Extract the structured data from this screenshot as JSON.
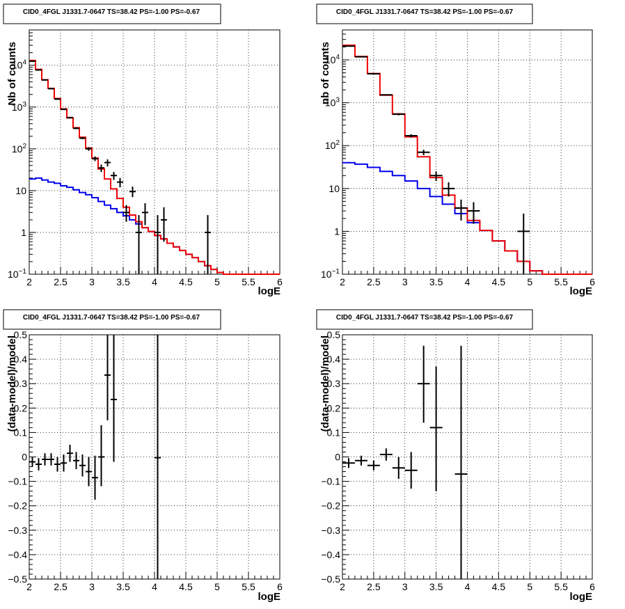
{
  "chart_data": [
    {
      "panel": "top-left",
      "type": "line",
      "title": "CID0_4FGL J1331.7-0647 TS=38.42 PS=-1.00 PS=-0.67",
      "xlabel": "logE",
      "ylabel": "Nb of counts",
      "xlim": [
        2,
        6
      ],
      "ylim": [
        0.1,
        70000
      ],
      "yscale": "log",
      "grid": true,
      "xticks": [
        "2",
        "2.5",
        "3",
        "3.5",
        "4",
        "4.5",
        "5",
        "5.5",
        "6"
      ],
      "yticks": [
        {
          "v": 0.1,
          "base": "10",
          "exp": "−1"
        },
        {
          "v": 1,
          "label": "1"
        },
        {
          "v": 10,
          "label": "10"
        },
        {
          "v": 100,
          "base": "10",
          "exp": "2"
        },
        {
          "v": 1000,
          "base": "10",
          "exp": "3"
        },
        {
          "v": 10000,
          "base": "10",
          "exp": "4"
        }
      ],
      "edges": [
        2.0,
        2.1,
        2.2,
        2.3,
        2.4,
        2.5,
        2.6,
        2.7,
        2.8,
        2.9,
        3.0,
        3.1,
        3.2,
        3.3,
        3.4,
        3.5,
        3.6,
        3.7,
        3.8,
        3.9,
        4.0,
        4.1,
        4.2,
        4.3,
        4.4,
        4.5,
        4.6,
        4.7,
        4.8,
        4.9,
        5.0,
        5.1,
        5.2,
        5.3,
        5.4,
        5.5,
        5.6,
        5.7,
        5.8,
        5.9,
        6.0
      ],
      "series": [
        {
          "name": "",
          "color": "#0000ee",
          "kind": "hist",
          "values": [
            19,
            20,
            18,
            16,
            15,
            13,
            12,
            10.5,
            9,
            8,
            6.8,
            5.5,
            4.5,
            3.7,
            3.0,
            2.5,
            2.0,
            1.6,
            1.3,
            1.05,
            0.85,
            0.7,
            0.55,
            0.45,
            0.37,
            0.3,
            0.25,
            0.2,
            0.16,
            0.13,
            0.11,
            0.1,
            0.1,
            0.1,
            0.1,
            0.1,
            0.1,
            0.1,
            0.1,
            0.1
          ]
        },
        {
          "name": "",
          "color": "#ee0000",
          "kind": "hist",
          "values": [
            13000,
            8000,
            4500,
            2800,
            1600,
            900,
            550,
            320,
            190,
            105,
            60,
            33,
            19,
            11,
            6.5,
            4.0,
            2.6,
            1.8,
            1.3,
            1.05,
            0.85,
            0.7,
            0.55,
            0.45,
            0.37,
            0.3,
            0.25,
            0.2,
            0.16,
            0.13,
            0.11,
            0.1,
            0.1,
            0.1,
            0.1,
            0.1,
            0.1,
            0.1,
            0.1,
            0.1
          ]
        },
        {
          "name": "",
          "color": "#000000",
          "kind": "points",
          "x": [
            2.05,
            2.15,
            2.25,
            2.35,
            2.45,
            2.55,
            2.65,
            2.75,
            2.85,
            2.95,
            3.05,
            3.15,
            3.25,
            3.35,
            3.45,
            3.55,
            3.65,
            3.75,
            3.85,
            4.05,
            4.15,
            4.85
          ],
          "y": [
            12500,
            7700,
            4450,
            2750,
            1550,
            880,
            560,
            310,
            180,
            100,
            58,
            35,
            47,
            23,
            16,
            3,
            9.5,
            1,
            3,
            1,
            2,
            1
          ],
          "ylo": [
            12300,
            7500,
            4300,
            2650,
            1490,
            850,
            535,
            295,
            170,
            90,
            51,
            28,
            38,
            18,
            12,
            1.8,
            7,
            0.1,
            1.5,
            0.1,
            0.6,
            0.1
          ],
          "yhi": [
            12700,
            7900,
            4600,
            2850,
            1610,
            910,
            585,
            325,
            190,
            110,
            66,
            42,
            56,
            28,
            20,
            4.5,
            12.5,
            2.6,
            5,
            2.6,
            4,
            2.6
          ]
        }
      ]
    },
    {
      "panel": "top-right",
      "type": "line",
      "title": "CID0_4FGL J1331.7-0647 TS=38.42 PS=-1.00 PS=-0.67",
      "xlabel": "logE",
      "ylabel": "nb of counts",
      "xlim": [
        2,
        6
      ],
      "ylim": [
        0.1,
        50000
      ],
      "yscale": "log",
      "grid": true,
      "xticks": [
        "2",
        "2.5",
        "3",
        "3.5",
        "4",
        "4.5",
        "5",
        "5.5",
        "6"
      ],
      "yticks": [
        {
          "v": 0.1,
          "base": "10",
          "exp": "−1"
        },
        {
          "v": 1,
          "label": "1"
        },
        {
          "v": 10,
          "label": "10"
        },
        {
          "v": 100,
          "base": "10",
          "exp": "2"
        },
        {
          "v": 1000,
          "base": "10",
          "exp": "3"
        },
        {
          "v": 10000,
          "base": "10",
          "exp": "4"
        }
      ],
      "edges": [
        2.0,
        2.2,
        2.4,
        2.6,
        2.8,
        3.0,
        3.2,
        3.4,
        3.6,
        3.8,
        4.0,
        4.2,
        4.4,
        4.6,
        4.8,
        5.0,
        5.2,
        5.4,
        5.6,
        5.8,
        6.0
      ],
      "series": [
        {
          "name": "",
          "color": "#0000ee",
          "kind": "hist",
          "values": [
            40,
            37,
            31,
            25,
            20,
            15,
            10,
            6.5,
            4.3,
            2.6,
            1.6,
            1.05,
            0.6,
            0.35,
            0.2,
            0.12,
            0.1,
            0.1,
            0.1,
            0.1
          ]
        },
        {
          "name": "",
          "color": "#ee0000",
          "kind": "hist",
          "values": [
            22000,
            12000,
            4800,
            1500,
            550,
            160,
            55,
            18,
            7,
            3.5,
            1.8,
            1.05,
            0.6,
            0.35,
            0.2,
            0.12,
            0.1,
            0.1,
            0.1,
            0.1
          ]
        },
        {
          "name": "",
          "color": "#000000",
          "kind": "points",
          "x": [
            2.1,
            2.3,
            2.5,
            2.7,
            2.9,
            3.1,
            3.3,
            3.5,
            3.7,
            3.9,
            4.1,
            4.9
          ],
          "y": [
            21000,
            11800,
            4750,
            1530,
            540,
            170,
            70,
            20,
            10,
            3.5,
            3,
            1
          ],
          "ylo": [
            20800,
            11600,
            4650,
            1480,
            510,
            155,
            60,
            15,
            6.5,
            1.8,
            1.5,
            0.1
          ],
          "yhi": [
            21200,
            12000,
            4850,
            1580,
            570,
            185,
            80,
            25,
            14,
            5.5,
            4.8,
            2.6
          ]
        }
      ]
    },
    {
      "panel": "bottom-left",
      "type": "scatter",
      "title": "CID0_4FGL J1331.7-0647 TS=38.42 PS=-1.00 PS=-0.67",
      "xlabel": "logE",
      "ylabel": "(data-model)/model",
      "xlim": [
        2,
        6
      ],
      "ylim": [
        -0.5,
        0.5
      ],
      "grid": true,
      "xticks": [
        "2",
        "2.5",
        "3",
        "3.5",
        "4",
        "4.5",
        "5",
        "5.5",
        "6"
      ],
      "yticks": [
        "−0.5",
        "−0.4",
        "−0.3",
        "−0.2",
        "−0.1",
        "0",
        "0.1",
        "0.2",
        "0.3",
        "0.4",
        "0.5"
      ],
      "series": [
        {
          "name": "",
          "color": "#000000",
          "kind": "points",
          "xerr": 0.05,
          "x": [
            2.05,
            2.15,
            2.25,
            2.35,
            2.45,
            2.55,
            2.65,
            2.75,
            2.85,
            2.95,
            3.05,
            3.15,
            3.25,
            3.35,
            4.05
          ],
          "y": [
            -0.02,
            -0.03,
            -0.01,
            -0.01,
            -0.03,
            -0.025,
            0.015,
            -0.015,
            -0.035,
            -0.06,
            -0.085,
            0.0,
            0.335,
            0.235,
            -0.003
          ],
          "ylo": [
            -0.04,
            -0.055,
            -0.035,
            -0.035,
            -0.06,
            -0.06,
            -0.02,
            -0.05,
            -0.08,
            -0.12,
            -0.175,
            -0.12,
            0.15,
            -0.02,
            -0.5
          ],
          "yhi": [
            0.0,
            -0.005,
            0.015,
            0.015,
            0.0,
            0.01,
            0.05,
            0.02,
            0.01,
            0.0,
            0.005,
            0.13,
            0.5,
            0.5,
            0.5
          ]
        }
      ]
    },
    {
      "panel": "bottom-right",
      "type": "scatter",
      "title": "CID0_4FGL J1331.7-0647 TS=38.42 PS=-1.00 PS=-0.67",
      "xlabel": "logE",
      "ylabel": "(data-model)/model",
      "xlim": [
        2,
        6
      ],
      "ylim": [
        -0.5,
        0.5
      ],
      "grid": true,
      "xticks": [
        "2",
        "2.5",
        "3",
        "3.5",
        "4",
        "4.5",
        "5",
        "5.5",
        "6"
      ],
      "yticks": [
        "−0.5",
        "−0.4",
        "−0.3",
        "−0.2",
        "−0.1",
        "0",
        "0.1",
        "0.2",
        "0.3",
        "0.4",
        "0.5"
      ],
      "series": [
        {
          "name": "",
          "color": "#000000",
          "kind": "points",
          "xerr": 0.1,
          "x": [
            2.1,
            2.3,
            2.5,
            2.7,
            2.9,
            3.1,
            3.3,
            3.5,
            3.9
          ],
          "y": [
            -0.025,
            -0.015,
            -0.035,
            0.01,
            -0.045,
            -0.055,
            0.3,
            0.12,
            -0.07
          ],
          "ylo": [
            -0.045,
            -0.035,
            -0.055,
            -0.015,
            -0.09,
            -0.13,
            0.14,
            -0.14,
            -0.5
          ],
          "yhi": [
            -0.005,
            0.005,
            -0.015,
            0.035,
            0.0,
            0.02,
            0.455,
            0.37,
            0.455
          ]
        }
      ]
    }
  ]
}
